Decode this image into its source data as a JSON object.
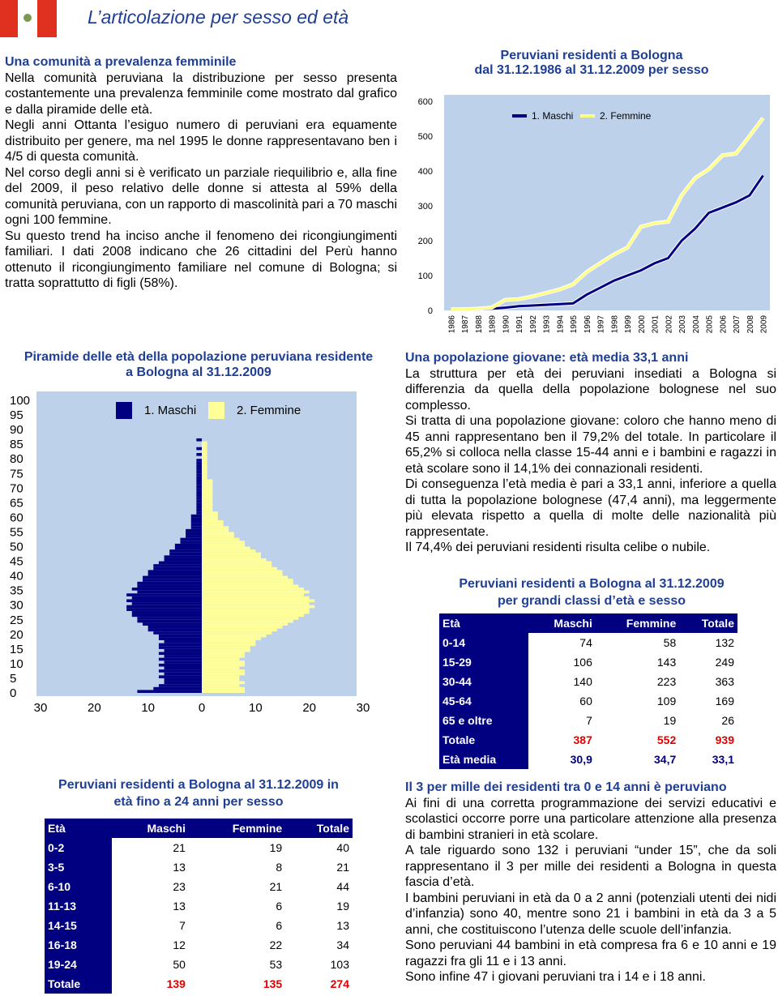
{
  "header": {
    "title": "L’articolazione per sesso ed età"
  },
  "left_text": {
    "heading": "Una comunità a prevalenza femminile",
    "paragraphs": [
      "Nella comunità peruviana la distribuzione per sesso presenta costantemente una prevalenza femminile come mostrato dal grafico e dalla piramide delle età.",
      "Negli anni Ottanta l’esiguo numero di peruviani era equamente distribuito per genere, ma nel 1995 le donne rappresentavano ben i 4/5 di questa comunità.",
      "Nel corso degli anni si è verificato un parziale riequilibrio e, alla fine del 2009, il peso relativo delle donne si attesta al 59% della comunità peruviana, con un rapporto di mascolinità pari a 70 maschi ogni 100 femmine.",
      "Su questo trend ha inciso anche il fenomeno dei ricongiungimenti familiari. I dati 2008 indicano che 26 cittadini del Perù hanno ottenuto il ricongiungimento familiare nel comune di Bologna; si tratta soprattutto di figli (58%)."
    ]
  },
  "right_text": {
    "heading": "Una popolazione giovane: età media 33,1 anni",
    "paragraphs": [
      "La struttura per età dei peruviani insediati a Bologna si differenzia da quella della popolazione bolognese nel suo complesso.",
      "Si tratta di una popolazione giovane: coloro che hanno meno di 45 anni rappresentano ben il 79,2% del totale. In particolare il 65,2% si colloca nella classe 15-44 anni e i bambini e ragazzi in età scolare sono il 14,1% dei connazionali residenti.",
      "Di conseguenza l’età media è pari a 33,1 anni, inferiore a quella di tutta la popolazione bolognese (47,4 anni), ma leggermente più elevata rispetto a quella di molte delle nazionalità più rappresentate.",
      "Il 74,4% dei peruviani residenti risulta celibe o nubile."
    ]
  },
  "bottom_text": {
    "heading": "Il 3 per mille dei residenti tra 0 e 14 anni è peruviano",
    "paragraphs": [
      "Ai fini di una corretta programmazione dei servizi educativi e scolastici occorre porre una particolare attenzione alla presenza di bambini stranieri in età scolare.",
      "A tale riguardo sono 132 i peruviani “under 15”, che da soli rappresentano il 3 per mille dei residenti a Bologna in questa fascia d’età.",
      "I bambini peruviani in età da 0 a 2 anni (potenziali utenti dei nidi d’infanzia) sono 40, mentre sono 21 i bambini in età da 3 a 5 anni, che costituiscono l’utenza delle scuole dell’infanzia.",
      "Sono peruviani 44 bambini in età compresa fra 6 e 10 anni e 19 ragazzi fra gli 11 e i 13 anni.",
      "Sono infine 47 i giovani peruviani tra i 14 e i 18 anni."
    ]
  },
  "tables": [
    {
      "title": "Peruviani residenti a Bologna al 31.12.2009 per grandi classi d’età e sesso",
      "columns": [
        "Età",
        "Maschi",
        "Femmine",
        "Totale"
      ],
      "rows": [
        [
          "0-14",
          74,
          58,
          132
        ],
        [
          "15-29",
          106,
          143,
          249
        ],
        [
          "30-44",
          140,
          223,
          363
        ],
        [
          "45-64",
          60,
          109,
          169
        ],
        [
          "65 e oltre",
          7,
          19,
          26
        ],
        [
          "Totale",
          387,
          552,
          939
        ],
        [
          "Età media",
          "30,9",
          "34,7",
          "33,1"
        ]
      ]
    },
    {
      "title": "Peruviani residenti a Bologna al 31.12.2009 in età fino a 24 anni per sesso",
      "columns": [
        "Età",
        "Maschi",
        "Femmine",
        "Totale"
      ],
      "rows": [
        [
          "0-2",
          21,
          19,
          40
        ],
        [
          "3-5",
          13,
          8,
          21
        ],
        [
          "6-10",
          23,
          21,
          44
        ],
        [
          "11-13",
          13,
          6,
          19
        ],
        [
          "14-15",
          7,
          6,
          13
        ],
        [
          "16-18",
          12,
          22,
          34
        ],
        [
          "19-24",
          50,
          53,
          103
        ],
        [
          "Totale",
          139,
          135,
          274
        ]
      ]
    }
  ],
  "chart_data": [
    {
      "type": "line",
      "title": "Peruviani residenti a Bologna dal 31.12.1986 al 31.12.2009 per sesso",
      "categories": [
        "1986",
        "1987",
        "1988",
        "1989",
        "1990",
        "1991",
        "1992",
        "1993",
        "1994",
        "1995",
        "1996",
        "1997",
        "1998",
        "1999",
        "2000",
        "2001",
        "2002",
        "2003",
        "2004",
        "2005",
        "2006",
        "2007",
        "2008",
        "2009"
      ],
      "series": [
        {
          "name": "1. Maschi",
          "color": "#000080",
          "values": [
            2,
            3,
            3,
            5,
            8,
            12,
            14,
            16,
            18,
            20,
            45,
            65,
            85,
            100,
            115,
            135,
            150,
            200,
            235,
            280,
            295,
            310,
            330,
            387
          ]
        },
        {
          "name": "2. Femmine",
          "color": "#ffff80",
          "values": [
            3,
            3,
            5,
            8,
            30,
            32,
            40,
            50,
            60,
            75,
            110,
            135,
            160,
            180,
            240,
            250,
            255,
            330,
            380,
            405,
            445,
            450,
            500,
            552
          ]
        }
      ],
      "ylim": [
        0,
        600
      ],
      "yticks": [
        0,
        100,
        200,
        300,
        400,
        500,
        600
      ]
    },
    {
      "type": "pyramid",
      "title": "Piramide delle età della popolazione peruviana residente a Bologna al 31.12.2009",
      "ages": [
        0,
        1,
        2,
        3,
        4,
        5,
        6,
        7,
        8,
        9,
        10,
        11,
        12,
        13,
        14,
        15,
        16,
        17,
        18,
        19,
        20,
        21,
        22,
        23,
        24,
        25,
        26,
        27,
        28,
        29,
        30,
        31,
        32,
        33,
        34,
        35,
        36,
        37,
        38,
        39,
        40,
        41,
        42,
        43,
        44,
        45,
        46,
        47,
        48,
        49,
        50,
        51,
        52,
        53,
        54,
        55,
        56,
        57,
        58,
        59,
        60,
        61,
        62,
        63,
        64,
        65,
        66,
        67,
        68,
        69,
        70,
        71,
        72,
        73,
        74,
        75,
        76,
        77,
        78,
        79,
        80,
        81,
        82,
        83,
        84,
        85,
        86,
        87,
        88,
        89,
        90
      ],
      "series": [
        {
          "name": "1. Maschi",
          "color": "#000080",
          "values": [
            12,
            9,
            8,
            7,
            7,
            8,
            7,
            8,
            7,
            8,
            7,
            8,
            7,
            8,
            7,
            8,
            8,
            7,
            8,
            8,
            9,
            10,
            10,
            11,
            12,
            12,
            13,
            13,
            14,
            14,
            13,
            14,
            13,
            14,
            12,
            13,
            12,
            12,
            11,
            11,
            10,
            10,
            9,
            9,
            8,
            7,
            7,
            6,
            6,
            5,
            5,
            4,
            4,
            3,
            3,
            3,
            2,
            2,
            2,
            2,
            2,
            1,
            1,
            1,
            1,
            1,
            1,
            1,
            1,
            1,
            1,
            1,
            1,
            1,
            1,
            1,
            1,
            1,
            1,
            1,
            0,
            1,
            0,
            1,
            0,
            0,
            1,
            0,
            0,
            0,
            0
          ]
        },
        {
          "name": "2. Femmine",
          "color": "#ffff99",
          "values": [
            8,
            8,
            7,
            8,
            7,
            7,
            8,
            8,
            7,
            8,
            8,
            7,
            8,
            8,
            9,
            9,
            10,
            10,
            11,
            12,
            13,
            14,
            15,
            16,
            17,
            18,
            19,
            20,
            20,
            21,
            20,
            21,
            20,
            19,
            20,
            19,
            18,
            17,
            17,
            16,
            15,
            15,
            14,
            13,
            13,
            12,
            11,
            11,
            10,
            9,
            8,
            8,
            7,
            6,
            6,
            5,
            5,
            4,
            4,
            3,
            3,
            3,
            2,
            2,
            2,
            2,
            2,
            2,
            2,
            2,
            2,
            2,
            2,
            1,
            1,
            1,
            1,
            1,
            1,
            1,
            1,
            1,
            1,
            1,
            1,
            1,
            0,
            0,
            0,
            0,
            0
          ]
        }
      ],
      "ylim": [
        0,
        100
      ],
      "yticks": [
        0,
        5,
        10,
        15,
        20,
        25,
        30,
        35,
        40,
        45,
        50,
        55,
        60,
        65,
        70,
        75,
        80,
        85,
        90,
        95,
        100
      ],
      "xlim": [
        -30,
        30
      ],
      "xticks": [
        {
          "value": -30,
          "label": "30"
        },
        {
          "value": -20,
          "label": "20"
        },
        {
          "value": -10,
          "label": "10"
        },
        0,
        10,
        20,
        30
      ]
    }
  ]
}
